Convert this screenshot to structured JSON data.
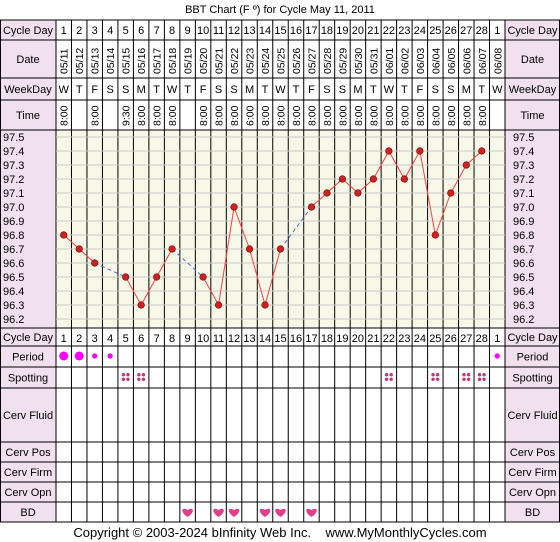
{
  "chart_title": "BBT Chart (F º) for Cycle May 11, 2011",
  "footer": "Copyright © 2003-2024 bInfinity Web Inc.    www.MyMonthlyCycles.com",
  "colors": {
    "label_bg": "#f0e0f0",
    "plot_bg": "#f8f8e8",
    "grid": "#c8c8c8",
    "line": "#ff4040",
    "dashed": "#4a6fe0",
    "dot": "#cc2222",
    "period": "#ff00ff",
    "spotting": "#cc3377",
    "heart": "#e0408a"
  },
  "row_labels": {
    "cycle_day": "Cycle Day",
    "date": "Date",
    "weekday": "WeekDay",
    "time": "Time",
    "period": "Period",
    "spotting": "Spotting",
    "cerv_fluid": "Cerv Fluid",
    "cerv_pos": "Cerv Pos",
    "cerv_firm": "Cerv Firm",
    "cerv_opn": "Cerv Opn",
    "bd": "BD"
  },
  "cycle_days": [
    "1",
    "2",
    "3",
    "4",
    "5",
    "6",
    "7",
    "8",
    "9",
    "10",
    "11",
    "12",
    "13",
    "14",
    "15",
    "16",
    "17",
    "18",
    "19",
    "20",
    "21",
    "22",
    "23",
    "24",
    "25",
    "26",
    "27",
    "28",
    "1"
  ],
  "dates": [
    "05/11",
    "05/12",
    "05/13",
    "05/14",
    "05/15",
    "05/16",
    "05/17",
    "05/18",
    "05/19",
    "05/20",
    "05/21",
    "05/22",
    "05/23",
    "05/24",
    "05/25",
    "05/26",
    "05/27",
    "05/28",
    "05/29",
    "05/30",
    "05/31",
    "06/01",
    "06/02",
    "06/03",
    "06/04",
    "06/05",
    "06/06",
    "06/07",
    "06/08"
  ],
  "weekdays": [
    "W",
    "T",
    "F",
    "S",
    "S",
    "M",
    "T",
    "W",
    "T",
    "F",
    "S",
    "S",
    "M",
    "T",
    "W",
    "T",
    "F",
    "S",
    "S",
    "M",
    "T",
    "W",
    "T",
    "F",
    "S",
    "S",
    "M",
    "T",
    "W"
  ],
  "times": [
    "8:00",
    "",
    "8:00",
    "",
    "9:30",
    "8:00",
    "8:00",
    "8:00",
    "",
    "8:00",
    "8:00",
    "8:00",
    "6:00",
    "8:00",
    "8:00",
    "8:00",
    "8:00",
    "8:00",
    "8:00",
    "8:00",
    "8:00",
    "8:00",
    "8:00",
    "8:00",
    "8:00",
    "8:00",
    "8:00",
    "8:00",
    ""
  ],
  "period": [
    "large",
    "large",
    "small",
    "small",
    "",
    "",
    "",
    "",
    "",
    "",
    "",
    "",
    "",
    "",
    "",
    "",
    "",
    "",
    "",
    "",
    "",
    "",
    "",
    "",
    "",
    "",
    "",
    "",
    "small"
  ],
  "spotting": [
    false,
    false,
    false,
    false,
    true,
    true,
    false,
    false,
    false,
    false,
    false,
    false,
    false,
    false,
    false,
    false,
    false,
    false,
    false,
    false,
    false,
    true,
    false,
    false,
    true,
    false,
    true,
    true,
    false
  ],
  "bd": [
    false,
    false,
    false,
    false,
    false,
    false,
    false,
    false,
    true,
    false,
    true,
    true,
    false,
    true,
    true,
    false,
    true,
    false,
    false,
    false,
    false,
    false,
    false,
    false,
    false,
    false,
    false,
    false,
    false
  ],
  "chart_data": {
    "type": "line",
    "title": "BBT Chart (F º) for Cycle May 11, 2011",
    "x": [
      "1",
      "2",
      "3",
      "4",
      "5",
      "6",
      "7",
      "8",
      "9",
      "10",
      "11",
      "12",
      "13",
      "14",
      "15",
      "16",
      "17",
      "18",
      "19",
      "20",
      "21",
      "22",
      "23",
      "24",
      "25",
      "26",
      "27",
      "28"
    ],
    "temps": [
      96.8,
      96.7,
      96.6,
      null,
      96.5,
      96.3,
      96.5,
      96.7,
      null,
      96.5,
      96.3,
      97.0,
      96.7,
      96.3,
      96.7,
      null,
      97.0,
      97.1,
      97.2,
      97.1,
      97.2,
      97.4,
      97.2,
      97.4,
      96.8,
      97.1,
      97.3,
      97.4
    ],
    "y_ticks": [
      "97.5",
      "97.4",
      "97.3",
      "97.2",
      "97.1",
      "97.0",
      "96.9",
      "96.8",
      "96.7",
      "96.6",
      "96.5",
      "96.4",
      "96.3",
      "96.2"
    ],
    "ylim": [
      96.2,
      97.5
    ],
    "grid": true
  }
}
